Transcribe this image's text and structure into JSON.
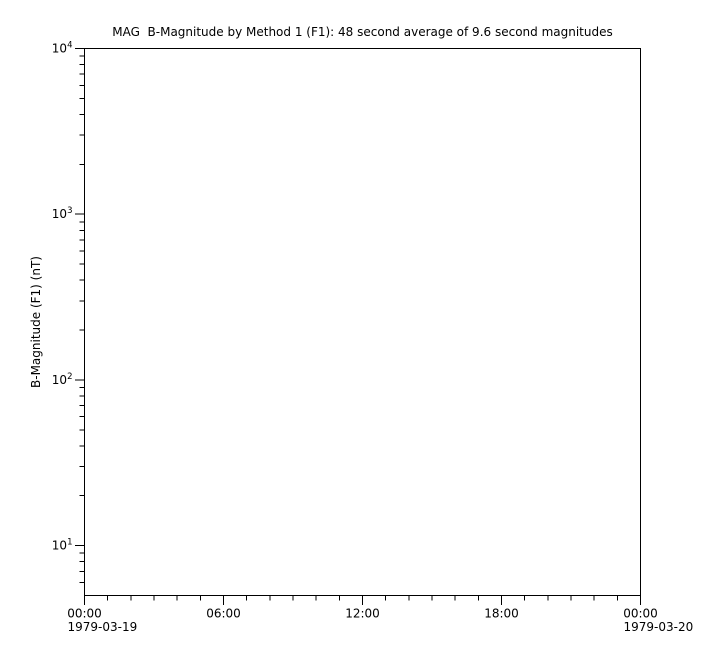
{
  "figure": {
    "background": "#ffffff",
    "line_color": "#000000"
  },
  "chart_data": {
    "type": "line",
    "title": "MAG  B-Magnitude by Method 1 (F1): 48 second average of 9.6 second magnitudes",
    "xlabel": "",
    "ylabel": "B-Magnitude (F1) (nT)",
    "grid": false,
    "legend": null,
    "x_axis": {
      "scale": "time",
      "range_hours": [
        0,
        24
      ],
      "minor_tick_interval_hours": 1,
      "major_ticks": [
        {
          "hour": 0,
          "label": "00:00",
          "date_label": "1979-03-19"
        },
        {
          "hour": 6,
          "label": "06:00"
        },
        {
          "hour": 12,
          "label": "12:00"
        },
        {
          "hour": 18,
          "label": "18:00"
        },
        {
          "hour": 24,
          "label": "00:00",
          "date_label": "1979-03-20"
        }
      ]
    },
    "y_axis": {
      "scale": "log",
      "range": [
        5,
        10000
      ],
      "major_ticks": [
        {
          "value": 10,
          "label_base": "10",
          "label_exponent": "1"
        },
        {
          "value": 100,
          "label_base": "10",
          "label_exponent": "2"
        },
        {
          "value": 1000,
          "label_base": "10",
          "label_exponent": "3"
        },
        {
          "value": 10000,
          "label_base": "10",
          "label_exponent": "4"
        }
      ],
      "minor_ticks_per_decade": [
        2,
        3,
        4,
        5,
        6,
        7,
        8,
        9
      ]
    },
    "series": []
  }
}
